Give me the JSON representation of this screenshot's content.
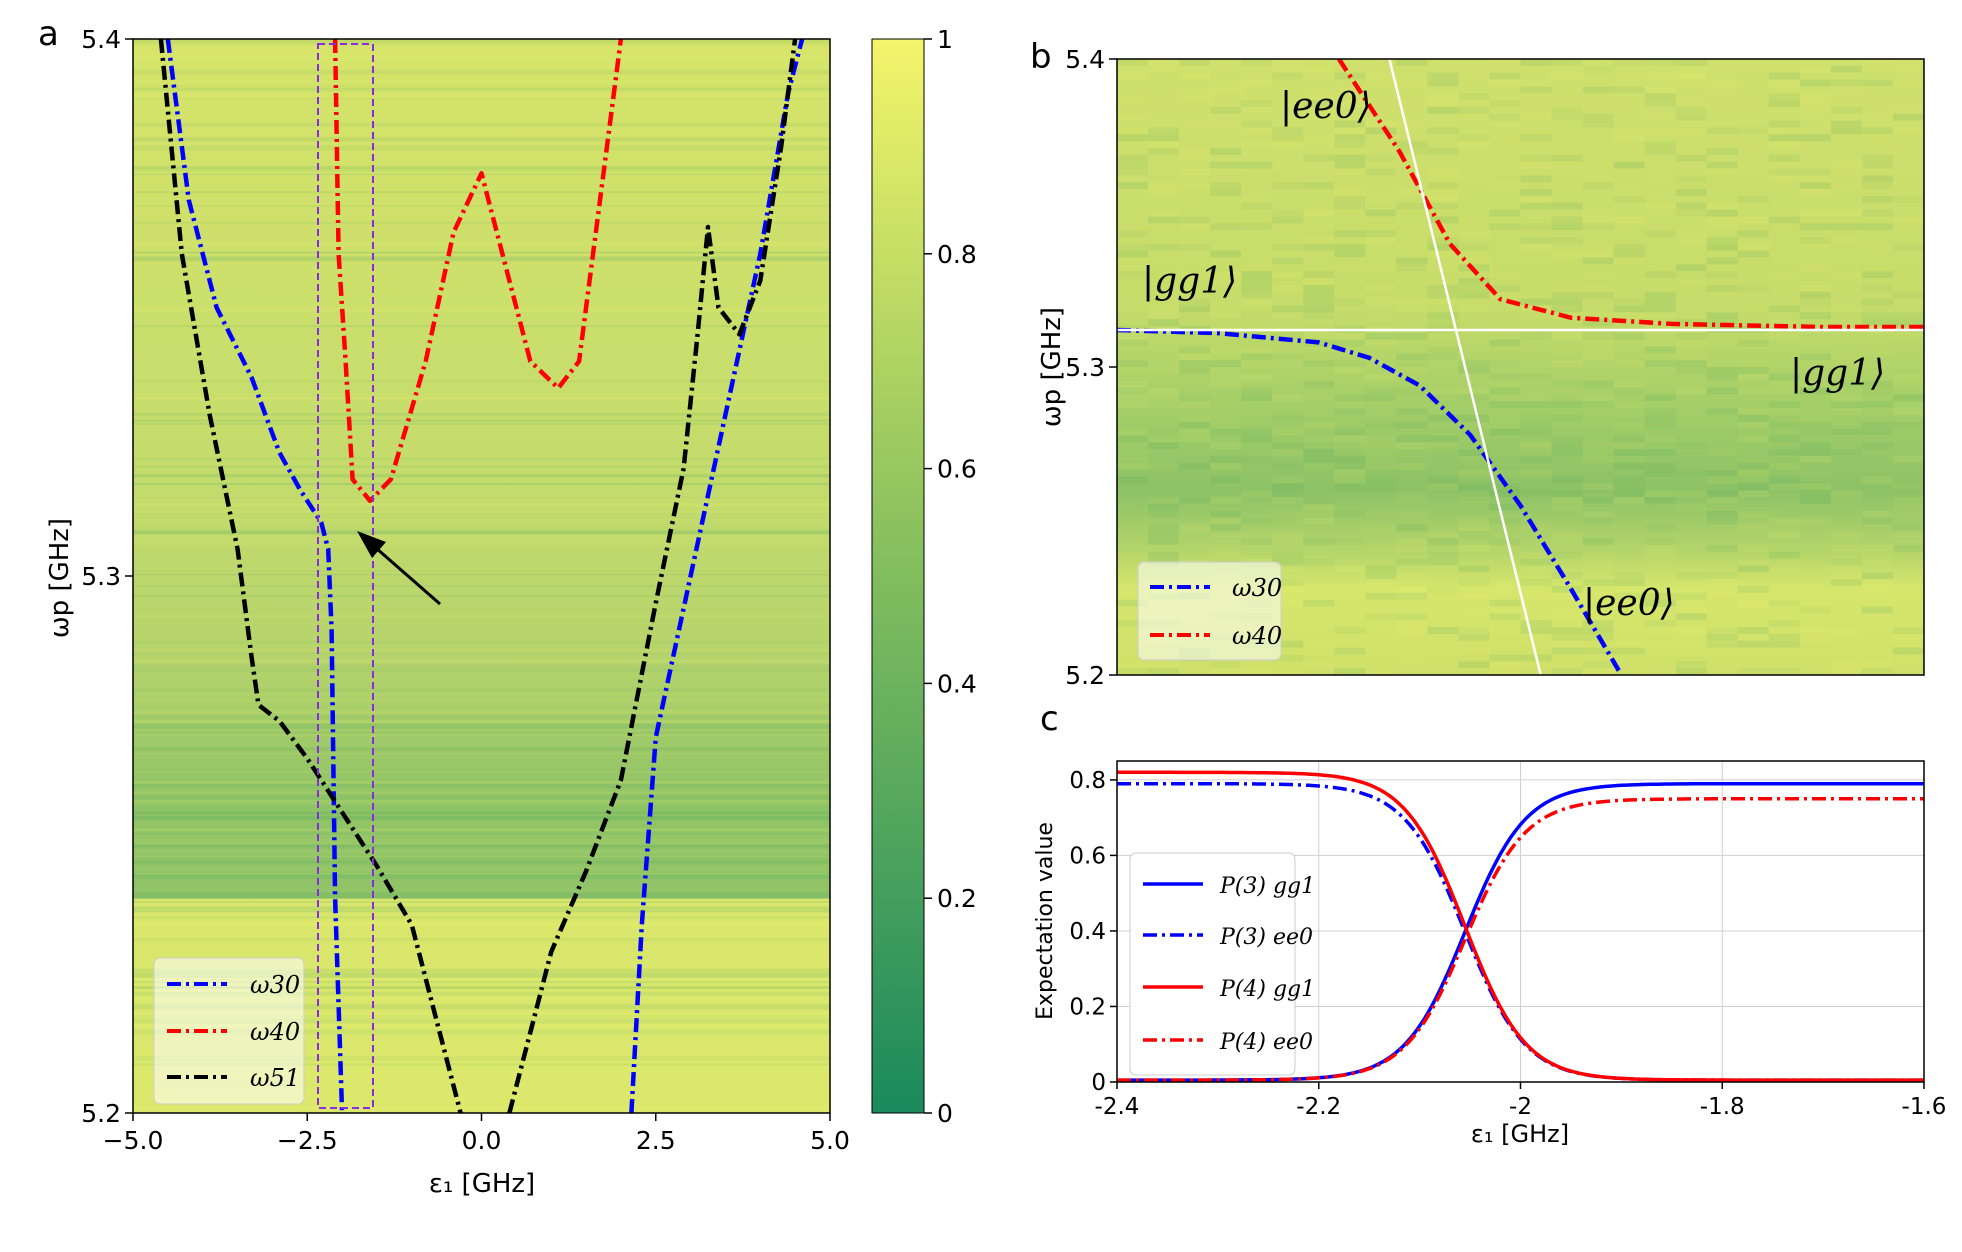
{
  "panels": {
    "a": {
      "letter": "a",
      "xlabel": "ε₁ [GHz]",
      "ylabel": "ωp [GHz]",
      "xticks": [
        "−5.0",
        "−2.5",
        "0.0",
        "2.5",
        "5.0"
      ],
      "yticks": [
        "5.2",
        "5.3",
        "5.4"
      ],
      "legend": [
        "ω30",
        "ω40",
        "ω51"
      ]
    },
    "colorbar": {
      "ticks": [
        "0",
        "0.2",
        "0.4",
        "0.6",
        "0.8",
        "1"
      ],
      "low_color": "#1a8a5c",
      "mid_color": "#8cc25e",
      "high_color": "#f4f56a"
    },
    "b": {
      "letter": "b",
      "ylabel": "ωp [GHz]",
      "yticks": [
        "5.2",
        "5.3",
        "5.4"
      ],
      "legend": [
        "ω30",
        "ω40"
      ],
      "state_labels": [
        "|ee0⟩",
        "|gg1⟩",
        "|gg1⟩",
        "|ee0⟩"
      ]
    },
    "c": {
      "letter": "c",
      "xlabel": "ε₁ [GHz]",
      "ylabel": "Expectation value",
      "xticks": [
        "-2.4",
        "-2.2",
        "-2",
        "-1.8",
        "-1.6"
      ],
      "yticks": [
        "0",
        "0.2",
        "0.4",
        "0.6",
        "0.8"
      ],
      "legend": [
        "P(3) gg1",
        "P(3) ee0",
        "P(4) gg1",
        "P(4) ee0"
      ]
    }
  },
  "chart_data": [
    {
      "type": "heatmap",
      "panel": "a",
      "xlabel": "ε1 [GHz]",
      "ylabel": "ωp [GHz]",
      "xlim": [
        -5,
        5
      ],
      "ylim": [
        5.2,
        5.4
      ],
      "colorbar_range": [
        0,
        1
      ],
      "series": [
        {
          "name": "ω30",
          "color": "#0000ff",
          "style": "dashdot",
          "branches": [
            [
              [
                -4.5,
                5.4
              ],
              [
                -4.2,
                5.37
              ],
              [
                -3.8,
                5.35
              ],
              [
                -3.3,
                5.337
              ],
              [
                -2.9,
                5.323
              ],
              [
                -2.6,
                5.316
              ],
              [
                -2.3,
                5.31
              ],
              [
                -2.2,
                5.305
              ],
              [
                -2.15,
                5.29
              ],
              [
                -2.1,
                5.24
              ],
              [
                -2.0,
                5.2
              ]
            ],
            [
              [
                2.15,
                5.2
              ],
              [
                2.3,
                5.235
              ],
              [
                2.5,
                5.27
              ],
              [
                3.0,
                5.3
              ],
              [
                3.5,
                5.33
              ],
              [
                4.0,
                5.36
              ],
              [
                4.4,
                5.39
              ],
              [
                4.6,
                5.4
              ]
            ]
          ]
        },
        {
          "name": "ω40",
          "color": "#ff0000",
          "style": "dashdot",
          "branches": [
            [
              [
                -2.1,
                5.4
              ],
              [
                -2.05,
                5.36
              ],
              [
                -1.95,
                5.34
              ],
              [
                -1.85,
                5.318
              ],
              [
                -1.6,
                5.314
              ],
              [
                -1.3,
                5.318
              ],
              [
                -0.8,
                5.34
              ],
              [
                -0.4,
                5.364
              ],
              [
                0.0,
                5.375
              ],
              [
                0.3,
                5.36
              ],
              [
                0.7,
                5.34
              ],
              [
                1.1,
                5.335
              ],
              [
                1.4,
                5.34
              ],
              [
                1.8,
                5.38
              ],
              [
                2.0,
                5.4
              ]
            ]
          ]
        },
        {
          "name": "ω51",
          "color": "#000000",
          "style": "dashdot",
          "branches": [
            [
              [
                -4.6,
                5.4
              ],
              [
                -4.3,
                5.36
              ],
              [
                -3.9,
                5.33
              ],
              [
                -3.5,
                5.305
              ],
              [
                -3.3,
                5.285
              ],
              [
                -3.2,
                5.276
              ],
              [
                -2.9,
                5.273
              ],
              [
                -2.5,
                5.266
              ],
              [
                -2.0,
                5.256
              ],
              [
                -1.5,
                5.246
              ],
              [
                -1.0,
                5.235
              ],
              [
                -0.6,
                5.215
              ],
              [
                -0.3,
                5.2
              ]
            ],
            [
              [
                0.4,
                5.2
              ],
              [
                0.7,
                5.215
              ],
              [
                1.0,
                5.23
              ],
              [
                1.5,
                5.245
              ],
              [
                2.0,
                5.262
              ],
              [
                2.5,
                5.295
              ],
              [
                2.9,
                5.32
              ],
              [
                3.1,
                5.345
              ],
              [
                3.25,
                5.365
              ],
              [
                3.4,
                5.35
              ],
              [
                3.7,
                5.345
              ],
              [
                4.0,
                5.355
              ],
              [
                4.3,
                5.38
              ],
              [
                4.5,
                5.4
              ]
            ]
          ]
        }
      ],
      "annotation": "dashed rectangle from ε1 = -2.4 to -1.6 GHz; arrow pointing to avoided crossing"
    },
    {
      "type": "heatmap",
      "panel": "b",
      "ylabel": "ωp [GHz]",
      "xlim": [
        -2.4,
        -1.6
      ],
      "ylim": [
        5.2,
        5.4
      ],
      "series": [
        {
          "name": "ω30",
          "color": "#0000ff",
          "style": "dashdot",
          "points": [
            [
              -2.4,
              5.312
            ],
            [
              -2.3,
              5.311
            ],
            [
              -2.2,
              5.308
            ],
            [
              -2.15,
              5.303
            ],
            [
              -2.1,
              5.294
            ],
            [
              -2.05,
              5.278
            ],
            [
              -2.0,
              5.255
            ],
            [
              -1.95,
              5.228
            ],
            [
              -1.9,
              5.2
            ]
          ]
        },
        {
          "name": "ω40",
          "color": "#ff0000",
          "style": "dashdot",
          "points": [
            [
              -2.18,
              5.4
            ],
            [
              -2.12,
              5.37
            ],
            [
              -2.07,
              5.34
            ],
            [
              -2.02,
              5.322
            ],
            [
              -1.95,
              5.316
            ],
            [
              -1.85,
              5.314
            ],
            [
              -1.7,
              5.313
            ],
            [
              -1.6,
              5.313
            ]
          ]
        },
        {
          "name": "gg1 bare",
          "color": "#ffffff",
          "style": "solid",
          "points": [
            [
              -2.4,
              5.312
            ],
            [
              -1.6,
              5.312
            ]
          ]
        },
        {
          "name": "ee0 bare",
          "color": "#ffffff",
          "style": "solid",
          "points": [
            [
              -2.13,
              5.4
            ],
            [
              -1.98,
              5.2
            ]
          ]
        }
      ]
    },
    {
      "type": "line",
      "panel": "c",
      "xlabel": "ε1 [GHz]",
      "ylabel": "Expectation value",
      "xlim": [
        -2.4,
        -1.6
      ],
      "ylim": [
        0,
        0.85
      ],
      "crossing_x": -2.055,
      "series": [
        {
          "name": "P(3) gg1",
          "color": "#0000ff",
          "style": "solid",
          "low": 0.005,
          "high": 0.79,
          "rising": true,
          "width": 0.03
        },
        {
          "name": "P(3) ee0",
          "color": "#0000ff",
          "style": "dashdot",
          "low": 0.005,
          "high": 0.79,
          "rising": false,
          "width": 0.03
        },
        {
          "name": "P(4) gg1",
          "color": "#ff0000",
          "style": "solid",
          "low": 0.005,
          "high": 0.82,
          "rising": false,
          "width": 0.03
        },
        {
          "name": "P(4) ee0",
          "color": "#ff0000",
          "style": "dashdot",
          "low": 0.005,
          "high": 0.75,
          "rising": true,
          "width": 0.03
        }
      ]
    }
  ]
}
